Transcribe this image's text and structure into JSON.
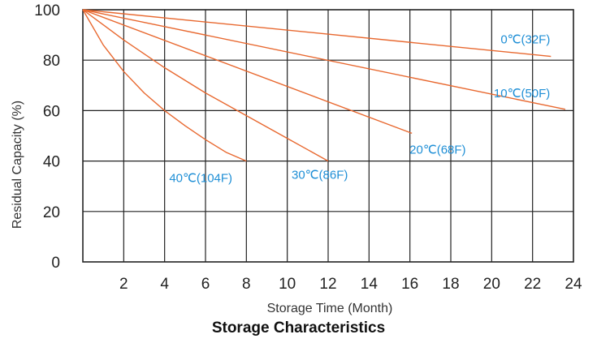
{
  "chart_data": {
    "type": "line",
    "title": "Storage Characteristics",
    "xlabel": "Storage Time (Month)",
    "ylabel": "Residual Capacity (%)",
    "xlim": [
      0,
      24
    ],
    "ylim": [
      0,
      100
    ],
    "x_ticks": [
      2,
      4,
      6,
      8,
      10,
      12,
      14,
      16,
      18,
      20,
      22,
      24
    ],
    "y_ticks": [
      0,
      20,
      40,
      60,
      80,
      100
    ],
    "grid": true,
    "series": [
      {
        "name": "0℃(32F)",
        "x": [
          0,
          22.9
        ],
        "y": [
          100,
          81.5
        ]
      },
      {
        "name": "10℃(50F)",
        "x": [
          0,
          23.6
        ],
        "y": [
          100,
          60.5
        ]
      },
      {
        "name": "20℃(68F)",
        "x": [
          0,
          16.1
        ],
        "y": [
          100,
          51
        ]
      },
      {
        "name": "30℃(86F)",
        "x": [
          0,
          2,
          4,
          6,
          8,
          10,
          12
        ],
        "y": [
          100,
          88,
          77,
          67,
          58,
          49,
          40
        ]
      },
      {
        "name": "40℃(104F)",
        "x": [
          0,
          1,
          2,
          3,
          4,
          5,
          6,
          7,
          8
        ],
        "y": [
          100,
          86,
          75.5,
          67,
          60,
          54,
          48.5,
          43.5,
          40
        ]
      }
    ],
    "colors": {
      "line": "#e8682f",
      "label": "#1f8fd6",
      "grid": "#222222"
    }
  }
}
